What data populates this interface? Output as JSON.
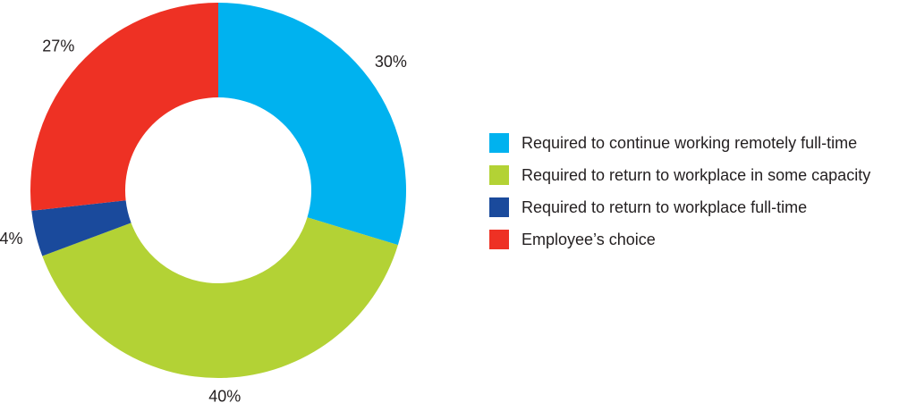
{
  "chart_data": {
    "type": "pie",
    "donut": true,
    "title": "",
    "categories": [
      "Required to continue working remotely full-time",
      "Required to return to workplace in some capacity",
      "Required to return to workplace full-time",
      "Employee’s choice"
    ],
    "values": [
      30,
      40,
      4,
      27
    ],
    "data_labels": [
      "30%",
      "40%",
      "4%",
      "27%"
    ],
    "colors": [
      "#00b2ef",
      "#b3d235",
      "#1a4a9c",
      "#ee3124"
    ],
    "legend_position": "right"
  }
}
